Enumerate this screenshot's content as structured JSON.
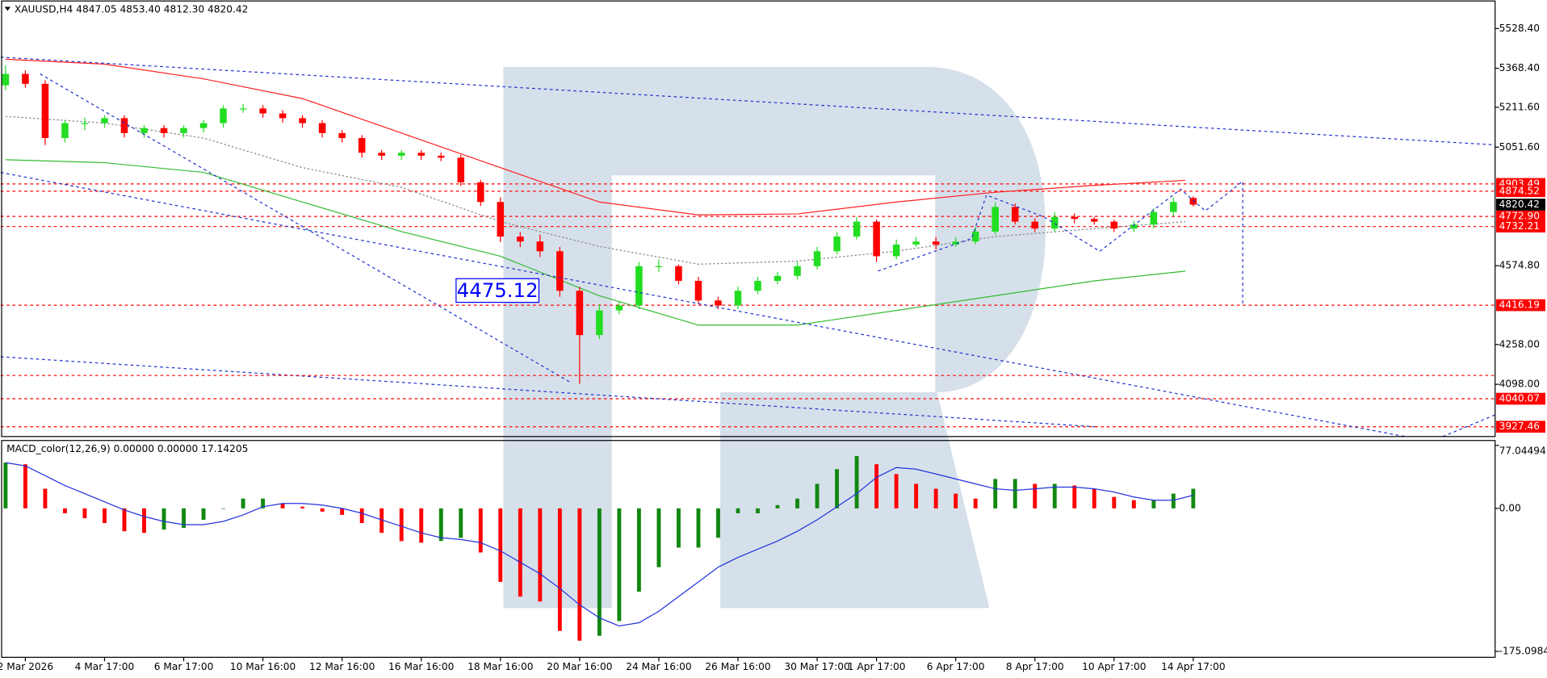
{
  "chart_data": [
    {
      "type": "candlestick",
      "title": "XAUUSD,H4  4847.05 4853.40 4812.30 4820.42",
      "categories": [
        null,
        "2 Mar 2026",
        null,
        null,
        null,
        "4 Mar 17:00",
        null,
        null,
        null,
        "6 Mar 17:00",
        null,
        null,
        null,
        "10 Mar 16:00",
        null,
        null,
        null,
        "12 Mar 16:00",
        null,
        null,
        null,
        "16 Mar 16:00",
        null,
        null,
        null,
        "18 Mar 16:00",
        null,
        null,
        null,
        "20 Mar 16:00",
        null,
        null,
        null,
        "24 Mar 16:00",
        null,
        null,
        null,
        "26 Mar 16:00",
        null,
        null,
        null,
        "30 Mar 17:00",
        null,
        null,
        "1 Apr 17:00",
        null,
        null,
        null,
        "6 Apr 17:00",
        null,
        null,
        null,
        "8 Apr 17:00",
        null,
        null,
        null,
        "10 Apr 17:00",
        null,
        null,
        null,
        "14 Apr 17:00"
      ],
      "open": [
        5300,
        5346,
        5306,
        5088,
        5148,
        5148,
        5168,
        5108,
        5128,
        5108,
        5128,
        5148,
        5207,
        5207,
        5187,
        5168,
        5148,
        5108,
        5088,
        5029,
        5017,
        5029,
        5017,
        5009,
        4910,
        4831,
        4692,
        4672,
        4633,
        4474,
        4296,
        4395,
        4415,
        4573,
        4573,
        4514,
        4435,
        4415,
        4474,
        4514,
        4534,
        4573,
        4633,
        4692,
        4752,
        4613,
        4660,
        4672,
        4660,
        4672,
        4712,
        4811,
        4752,
        4724,
        4771,
        4763,
        4752,
        4724,
        4740,
        4791,
        4847.05
      ],
      "high": [
        5380,
        5360,
        5320,
        5160,
        5170,
        5180,
        5180,
        5140,
        5140,
        5140,
        5160,
        5220,
        5225,
        5220,
        5200,
        5180,
        5160,
        5120,
        5100,
        5040,
        5040,
        5040,
        5030,
        5020,
        4920,
        4850,
        4710,
        4700,
        4650,
        4490,
        4420,
        4430,
        4590,
        4600,
        4580,
        4530,
        4450,
        4490,
        4530,
        4550,
        4590,
        4650,
        4710,
        4770,
        4760,
        4680,
        4690,
        4690,
        4690,
        4730,
        4830,
        4825,
        4765,
        4790,
        4785,
        4770,
        4760,
        4755,
        4805,
        4850,
        4853.4
      ],
      "low": [
        5280,
        5290,
        5060,
        5070,
        5120,
        5130,
        5090,
        5090,
        5090,
        5090,
        5110,
        5130,
        5190,
        5170,
        5150,
        5130,
        5090,
        5070,
        5010,
        5000,
        5000,
        5000,
        4995,
        4895,
        4815,
        4670,
        4650,
        4610,
        4450,
        4100,
        4280,
        4380,
        4400,
        4550,
        4500,
        4420,
        4400,
        4400,
        4460,
        4500,
        4520,
        4560,
        4620,
        4680,
        4590,
        4600,
        4650,
        4640,
        4650,
        4660,
        4700,
        4740,
        4710,
        4710,
        4745,
        4740,
        4710,
        4710,
        4725,
        4775,
        4812.3
      ],
      "close": [
        5346,
        5306,
        5088,
        5148,
        5148,
        5168,
        5108,
        5128,
        5108,
        5128,
        5148,
        5207,
        5207,
        5187,
        5168,
        5148,
        5108,
        5088,
        5029,
        5017,
        5029,
        5017,
        5009,
        4910,
        4831,
        4692,
        4672,
        4633,
        4474,
        4296,
        4395,
        4415,
        4573,
        4573,
        4514,
        4435,
        4415,
        4474,
        4514,
        4534,
        4573,
        4633,
        4692,
        4752,
        4613,
        4660,
        4672,
        4660,
        4672,
        4712,
        4811,
        4752,
        4724,
        4771,
        4763,
        4752,
        4724,
        4740,
        4791,
        4831,
        4820.42
      ],
      "up_color": "#22dd22",
      "down_color": "#ff0000",
      "series": [
        {
          "color": "#ff2020",
          "style": "solid",
          "x": [
            0,
            5,
            10,
            15,
            20,
            25,
            30,
            35,
            40,
            45,
            50,
            55,
            59.6
          ],
          "values": [
            5405,
            5385,
            5326,
            5247,
            5108,
            4969,
            4831,
            4779,
            4783,
            4831,
            4870,
            4898,
            4918
          ]
        },
        {
          "color": "#33bb33",
          "style": "solid",
          "x": [
            0,
            5,
            10,
            15,
            20,
            25,
            30,
            35,
            40,
            45,
            50,
            55,
            59.6
          ],
          "values": [
            5001,
            4989,
            4950,
            4831,
            4712,
            4613,
            4454,
            4336,
            4336,
            4395,
            4454,
            4514,
            4553
          ]
        },
        {
          "color": "#888888",
          "style": "dotted",
          "x": [
            0,
            5,
            10,
            15,
            20,
            25,
            30,
            35,
            40,
            45,
            50,
            55,
            59.6
          ],
          "values": [
            5175,
            5148,
            5088,
            4969,
            4890,
            4752,
            4652,
            4581,
            4593,
            4633,
            4692,
            4724,
            4752
          ]
        }
      ],
      "ylim": [
        3888,
        5643
      ],
      "yticks": [
        {
          "value": 5528.4,
          "label": "5528.40"
        },
        {
          "value": 5368.4,
          "label": "5368.40"
        },
        {
          "value": 5211.6,
          "label": "5211.60"
        },
        {
          "value": 5051.6,
          "label": "5051.60"
        },
        {
          "value": 4574.8,
          "label": "4574.80"
        },
        {
          "value": 4258,
          "label": "4258.00"
        },
        {
          "value": 4098,
          "label": "4098.00"
        }
      ],
      "levels": [
        4903.49,
        4874.52,
        {
          "value": 4772.9,
          "label": "4772.90"
        },
        4732.21,
        4416.19,
        4040.07,
        3927.46
      ],
      "level_color": "#ff0000",
      "last_price": 4820.42,
      "annotations": [
        {
          "value": 4475.12,
          "color": "#0000ff"
        }
      ]
    },
    {
      "type": "macd",
      "title": "MACD_color(12,26,9) 0.00000 0.00000 17.14205",
      "histogram": [
        56,
        54,
        24,
        -6,
        -12,
        -18,
        -28,
        -30,
        -26,
        -24,
        -14,
        0,
        12,
        12,
        6,
        2,
        -4,
        -8,
        -18,
        -30,
        -40,
        -42,
        -40,
        -36,
        -54,
        -90,
        -108,
        -114,
        -150,
        -162,
        -156,
        -138,
        -102,
        -72,
        -48,
        -48,
        -36,
        -6,
        -6,
        4,
        12,
        30,
        48,
        64,
        54,
        42,
        30,
        24,
        18,
        12,
        36,
        36,
        30,
        30,
        28,
        24,
        14,
        10,
        10,
        18,
        24
      ],
      "signal": [
        56,
        52,
        40,
        28,
        18,
        8,
        -2,
        -10,
        -16,
        -20,
        -20,
        -16,
        -8,
        2,
        6,
        6,
        4,
        0,
        -6,
        -14,
        -22,
        -30,
        -36,
        -38,
        -42,
        -52,
        -66,
        -80,
        -98,
        -118,
        -134,
        -144,
        -140,
        -126,
        -108,
        -90,
        -72,
        -60,
        -50,
        -40,
        -28,
        -14,
        2,
        18,
        38,
        50,
        48,
        42,
        36,
        30,
        24,
        22,
        24,
        26,
        26,
        24,
        20,
        14,
        10,
        10,
        16
      ],
      "up_color": "#118811",
      "down_color": "#ff0000",
      "signal_color": "#2233dd",
      "ylim": [
        -175.09847,
        77.04494
      ],
      "yticks": [
        77.04494,
        {
          "value": 0,
          "label": "0.00"
        },
        -175.09847
      ]
    }
  ]
}
